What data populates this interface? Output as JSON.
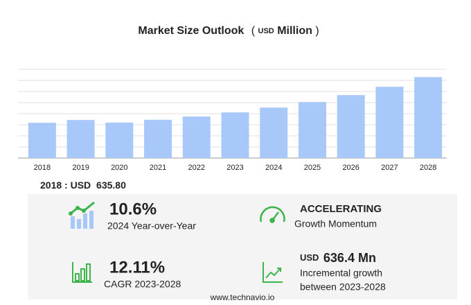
{
  "chart_data": {
    "type": "bar",
    "title": "Market Size Outlook",
    "unit_open": "(",
    "unit_currency": "USD",
    "unit_name": "Million",
    "unit_close": ")",
    "categories": [
      "2018",
      "2019",
      "2020",
      "2021",
      "2022",
      "2023",
      "2024",
      "2025",
      "2026",
      "2027",
      "2028"
    ],
    "values": [
      635.8,
      686,
      640,
      690,
      748,
      823,
      910,
      1010,
      1135,
      1285,
      1459
    ],
    "color": "#a8c8fa",
    "ylim": [
      0,
      1600
    ],
    "yticks": [
      0,
      200,
      400,
      600,
      800,
      1000,
      1200,
      1400,
      1600
    ],
    "grid": true
  },
  "summary": {
    "base_label": "2018 : USD",
    "base_value": "635.80",
    "yoy_value": "10.6%",
    "yoy_label": "2024 Year-over-Year",
    "momentum_value": "ACCELERATING",
    "momentum_label": "Growth Momentum",
    "cagr_value": "12.11%",
    "cagr_label": "CAGR 2023-2028",
    "incr_currency": "USD",
    "incr_value": "636.4 Mn",
    "incr_label_1": "Incremental growth",
    "incr_label_2": "between 2023-2028"
  },
  "footer": "www.technavio.io"
}
